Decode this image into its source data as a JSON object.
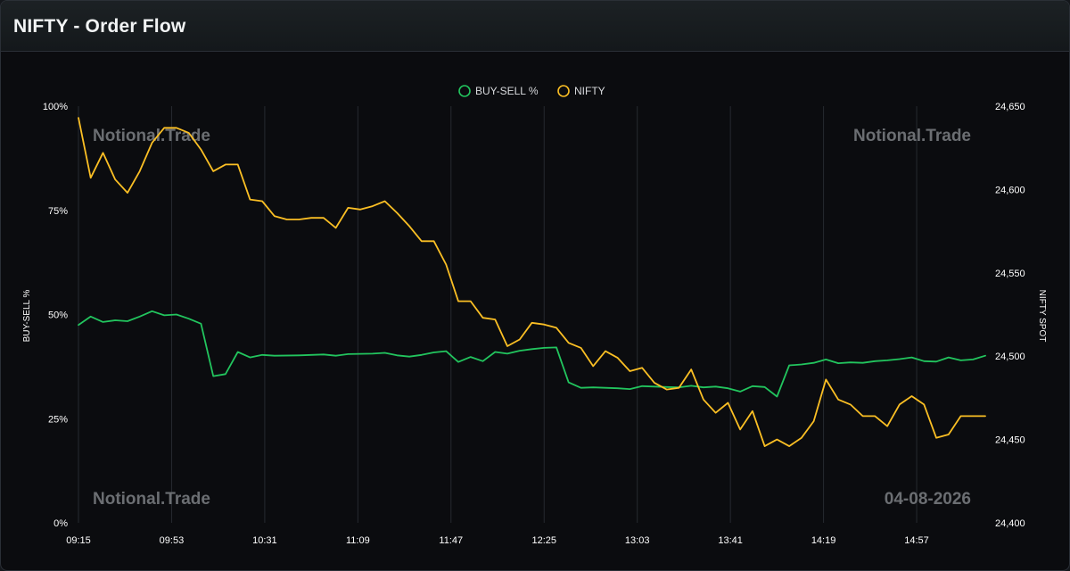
{
  "header": {
    "title": "NIFTY - Order Flow"
  },
  "watermarks": {
    "top_left": "Notional.Trade",
    "top_right": "Notional.Trade",
    "bottom_left": "Notional.Trade",
    "bottom_right": "04-08-2026"
  },
  "colors": {
    "buy_sell": "#22c55e",
    "nifty": "#fbbf24",
    "grid": "#262a30",
    "background": "#0b0c0f"
  },
  "chart_data": {
    "type": "line",
    "legend_placement": "top-center",
    "grid": true,
    "x_ticks": [
      "09:15",
      "09:53",
      "10:31",
      "11:09",
      "11:47",
      "12:25",
      "13:03",
      "13:41",
      "14:19",
      "14:57"
    ],
    "x_range_minutes": [
      0,
      345
    ],
    "y_left": {
      "label": "BUY-SELL %",
      "ticks": [
        "0%",
        "25%",
        "50%",
        "75%",
        "100%"
      ],
      "range": [
        0,
        100
      ]
    },
    "y_right": {
      "label": "NIFTY SPOT",
      "ticks": [
        "24,400",
        "24,450",
        "24,500",
        "24,550",
        "24,600",
        "24,650"
      ],
      "range": [
        24400,
        24650
      ]
    },
    "series": [
      {
        "name": "BUY-SELL %",
        "axis": "left",
        "points": [
          [
            0,
            47.5
          ],
          [
            5,
            49.5
          ],
          [
            10,
            48.2
          ],
          [
            15,
            48.6
          ],
          [
            20,
            48.4
          ],
          [
            25,
            49.5
          ],
          [
            30,
            50.8
          ],
          [
            35,
            49.8
          ],
          [
            40,
            50
          ],
          [
            45,
            49
          ],
          [
            50,
            47.8
          ],
          [
            55,
            35.2
          ],
          [
            60,
            35.7
          ],
          [
            65,
            41
          ],
          [
            70,
            39.7
          ],
          [
            75,
            40.3
          ],
          [
            80,
            40.1
          ],
          [
            90,
            40.2
          ],
          [
            100,
            40.4
          ],
          [
            105,
            40.1
          ],
          [
            110,
            40.5
          ],
          [
            120,
            40.6
          ],
          [
            125,
            40.8
          ],
          [
            130,
            40.2
          ],
          [
            135,
            39.9
          ],
          [
            140,
            40.3
          ],
          [
            145,
            40.9
          ],
          [
            150,
            41.2
          ],
          [
            155,
            38.6
          ],
          [
            160,
            39.8
          ],
          [
            165,
            38.8
          ],
          [
            170,
            41
          ],
          [
            175,
            40.6
          ],
          [
            180,
            41.3
          ],
          [
            185,
            41.7
          ],
          [
            190,
            42
          ],
          [
            195,
            42.1
          ],
          [
            200,
            33.7
          ],
          [
            205,
            32.4
          ],
          [
            210,
            32.5
          ],
          [
            220,
            32.3
          ],
          [
            225,
            32.1
          ],
          [
            230,
            32.8
          ],
          [
            240,
            32.6
          ],
          [
            245,
            32.5
          ],
          [
            250,
            32.9
          ],
          [
            255,
            32.5
          ],
          [
            260,
            32.7
          ],
          [
            265,
            32.3
          ],
          [
            270,
            31.5
          ],
          [
            275,
            32.8
          ],
          [
            280,
            32.6
          ],
          [
            285,
            30.3
          ],
          [
            290,
            37.8
          ],
          [
            295,
            38
          ],
          [
            300,
            38.4
          ],
          [
            305,
            39.2
          ],
          [
            310,
            38.3
          ],
          [
            315,
            38.5
          ],
          [
            320,
            38.4
          ],
          [
            325,
            38.8
          ],
          [
            330,
            39
          ],
          [
            335,
            39.3
          ],
          [
            340,
            39.7
          ],
          [
            345,
            38.8
          ],
          [
            350,
            38.7
          ],
          [
            355,
            39.7
          ],
          [
            360,
            39
          ],
          [
            365,
            39.2
          ],
          [
            370,
            40.1
          ]
        ]
      },
      {
        "name": "NIFTY",
        "axis": "right",
        "points": [
          [
            0,
            24643
          ],
          [
            5,
            24607
          ],
          [
            10,
            24622
          ],
          [
            15,
            24606
          ],
          [
            20,
            24598
          ],
          [
            25,
            24611
          ],
          [
            30,
            24628
          ],
          [
            35,
            24637
          ],
          [
            40,
            24637
          ],
          [
            45,
            24634
          ],
          [
            50,
            24624
          ],
          [
            55,
            24611
          ],
          [
            60,
            24615
          ],
          [
            65,
            24615
          ],
          [
            70,
            24594
          ],
          [
            75,
            24593
          ],
          [
            80,
            24584
          ],
          [
            85,
            24582
          ],
          [
            90,
            24582
          ],
          [
            95,
            24583
          ],
          [
            100,
            24583
          ],
          [
            105,
            24577
          ],
          [
            110,
            24589
          ],
          [
            115,
            24588
          ],
          [
            120,
            24590
          ],
          [
            125,
            24593
          ],
          [
            130,
            24586
          ],
          [
            135,
            24578
          ],
          [
            140,
            24569
          ],
          [
            145,
            24569
          ],
          [
            150,
            24555
          ],
          [
            155,
            24533
          ],
          [
            160,
            24533
          ],
          [
            165,
            24523
          ],
          [
            170,
            24522
          ],
          [
            175,
            24506
          ],
          [
            180,
            24510
          ],
          [
            185,
            24520
          ],
          [
            190,
            24519
          ],
          [
            195,
            24517
          ],
          [
            200,
            24508
          ],
          [
            205,
            24505
          ],
          [
            210,
            24494
          ],
          [
            215,
            24503
          ],
          [
            220,
            24499
          ],
          [
            225,
            24491
          ],
          [
            230,
            24493
          ],
          [
            235,
            24484
          ],
          [
            240,
            24480
          ],
          [
            245,
            24481
          ],
          [
            250,
            24492
          ],
          [
            255,
            24474
          ],
          [
            260,
            24466
          ],
          [
            265,
            24472
          ],
          [
            270,
            24456
          ],
          [
            275,
            24467
          ],
          [
            280,
            24446
          ],
          [
            285,
            24450
          ],
          [
            290,
            24446
          ],
          [
            295,
            24451
          ],
          [
            300,
            24461
          ],
          [
            305,
            24486
          ],
          [
            310,
            24474
          ],
          [
            315,
            24471
          ],
          [
            320,
            24464
          ],
          [
            325,
            24464
          ],
          [
            330,
            24458
          ],
          [
            335,
            24471
          ],
          [
            340,
            24476
          ],
          [
            345,
            24471
          ],
          [
            350,
            24451
          ],
          [
            355,
            24453
          ],
          [
            360,
            24464
          ],
          [
            365,
            24464
          ],
          [
            370,
            24464
          ]
        ]
      }
    ]
  }
}
